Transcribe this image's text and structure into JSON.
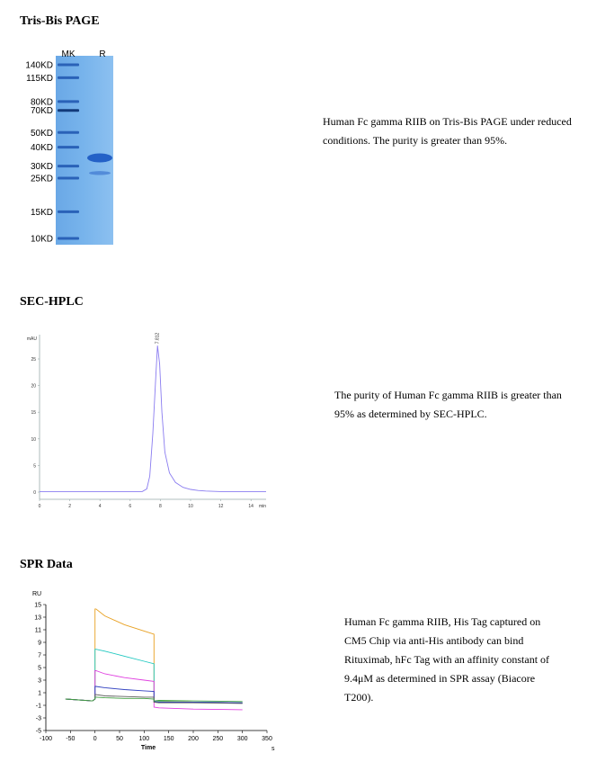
{
  "sections": {
    "page": {
      "title": "Tris-Bis PAGE",
      "caption_lines": [
        "Human Fc gamma RIIB on Tris-Bis PAGE under reduced",
        "conditions. The purity is greater than 95%."
      ]
    },
    "hplc": {
      "title": "SEC-HPLC",
      "caption_lines": [
        "The purity of Human Fc gamma RIIB is greater than",
        "95% as determined by SEC-HPLC."
      ]
    },
    "spr": {
      "title": "SPR Data",
      "caption_lines": [
        "Human Fc gamma RIIB, His Tag captured on",
        "CM5 Chip via anti-His antibody can bind",
        "Rituximab, hFc Tag with an affinity constant of",
        "9.4μM as determined in SPR assay (Biacore",
        "T200)."
      ]
    }
  },
  "gel": {
    "lane_labels": [
      "MK",
      "R"
    ],
    "markers": [
      {
        "label": "140KD",
        "kd": 140
      },
      {
        "label": "115KD",
        "kd": 115
      },
      {
        "label": "80KD",
        "kd": 80
      },
      {
        "label": "70KD",
        "kd": 70
      },
      {
        "label": "50KD",
        "kd": 50
      },
      {
        "label": "40KD",
        "kd": 40
      },
      {
        "label": "30KD",
        "kd": 30
      },
      {
        "label": "25KD",
        "kd": 25
      },
      {
        "label": "15KD",
        "kd": 15
      },
      {
        "label": "10KD",
        "kd": 10
      }
    ],
    "sample_bands_kd": [
      34,
      27
    ],
    "colors": {
      "gel": "#78b4ec",
      "band": "#1f5cc4"
    }
  },
  "chart_data": [
    {
      "type": "line",
      "ylabel": "mAU",
      "xlabel": "min",
      "x_ticks": [
        0,
        2,
        4,
        6,
        8,
        10,
        12,
        14
      ],
      "y_ticks": [
        0,
        5,
        10,
        15,
        20,
        25
      ],
      "xlim": [
        0,
        15
      ],
      "ylim": [
        -1,
        30
      ],
      "peak_label": "7.812",
      "series": [
        {
          "color": "#8a7cf0",
          "x": [
            0,
            6.8,
            7.1,
            7.3,
            7.5,
            7.7,
            7.812,
            7.95,
            8.1,
            8.3,
            8.6,
            9.0,
            9.5,
            10.0,
            10.5,
            11.0,
            12.0,
            15.0
          ],
          "y": [
            0.1,
            0.1,
            0.6,
            3,
            11,
            22,
            27.5,
            24,
            15,
            7.5,
            3.6,
            1.8,
            0.9,
            0.5,
            0.3,
            0.2,
            0.1,
            0.1
          ]
        }
      ]
    },
    {
      "type": "line",
      "ylabel": "RU",
      "xlabel": "Time",
      "x_unit": "s",
      "x_ticks": [
        -100,
        -50,
        0,
        50,
        100,
        150,
        200,
        250,
        300,
        350
      ],
      "y_ticks": [
        -5,
        -3,
        -1,
        1,
        3,
        5,
        7,
        9,
        11,
        13,
        15
      ],
      "xlim": [
        -100,
        350
      ],
      "ylim": [
        -5,
        15
      ],
      "series": [
        {
          "color": "#e8a020",
          "x": [
            -60,
            -5,
            0,
            2,
            20,
            60,
            100,
            120,
            121,
            130,
            200,
            300
          ],
          "y": [
            0,
            -0.3,
            0,
            14.3,
            13.2,
            11.8,
            10.8,
            10.3,
            -0.5,
            -0.3,
            -0.5,
            -0.6
          ]
        },
        {
          "color": "#20c8c0",
          "x": [
            -60,
            -5,
            0,
            2,
            20,
            60,
            100,
            120,
            121,
            130,
            200,
            300
          ],
          "y": [
            0,
            -0.3,
            0,
            7.9,
            7.6,
            6.8,
            6.0,
            5.6,
            -0.4,
            -0.4,
            -0.5,
            -0.6
          ]
        },
        {
          "color": "#e040e0",
          "x": [
            -60,
            -5,
            0,
            2,
            20,
            60,
            100,
            120,
            121,
            130,
            200,
            300
          ],
          "y": [
            0,
            -0.3,
            0,
            4.5,
            4.0,
            3.4,
            3.0,
            2.8,
            -1.3,
            -1.4,
            -1.6,
            -1.7
          ]
        },
        {
          "color": "#3040c0",
          "x": [
            -60,
            -5,
            0,
            2,
            20,
            60,
            100,
            120,
            121,
            130,
            200,
            300
          ],
          "y": [
            0,
            -0.3,
            0,
            2.0,
            1.8,
            1.5,
            1.3,
            1.2,
            -0.4,
            -0.5,
            -0.5,
            -0.6
          ]
        },
        {
          "color": "#606060",
          "x": [
            -60,
            -5,
            0,
            2,
            20,
            60,
            100,
            120,
            121,
            130,
            200,
            300
          ],
          "y": [
            0,
            -0.3,
            0,
            0.7,
            0.5,
            0.4,
            0.3,
            0.3,
            -0.5,
            -0.6,
            -0.6,
            -0.7
          ]
        },
        {
          "color": "#40a040",
          "x": [
            -60,
            -5,
            0,
            2,
            20,
            60,
            100,
            120,
            121,
            130,
            200,
            300
          ],
          "y": [
            0,
            -0.3,
            0,
            0.3,
            0.2,
            0.1,
            0.1,
            0.0,
            -0.3,
            -0.2,
            -0.3,
            -0.4
          ]
        }
      ]
    }
  ]
}
